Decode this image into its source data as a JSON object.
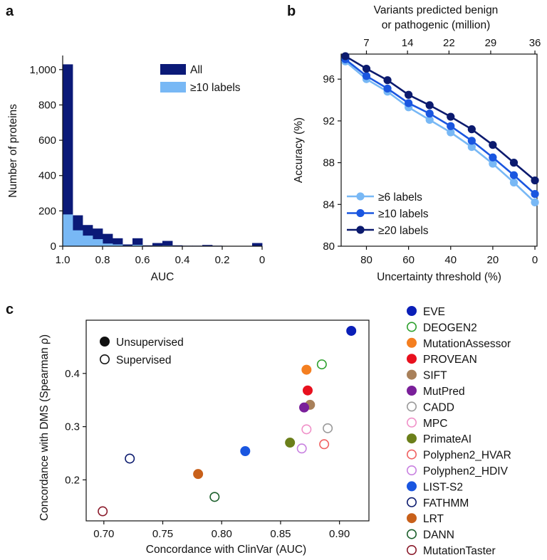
{
  "figure": {
    "panels": {
      "a": "a",
      "b": "b",
      "c": "c"
    }
  },
  "chart_data": [
    {
      "id": "a",
      "type": "bar",
      "title": "",
      "xlabel": "AUC",
      "ylabel": "Number of proteins",
      "xlim": [
        1.0,
        0.0
      ],
      "ylim": [
        0,
        1080
      ],
      "xticks": [
        1.0,
        0.8,
        0.6,
        0.4,
        0.2,
        0
      ],
      "xtick_labels": [
        "1.0",
        "0.8",
        "0.6",
        "0.4",
        "0.2",
        "0"
      ],
      "yticks": [
        0,
        200,
        400,
        600,
        800,
        1000
      ],
      "ytick_labels": [
        "0",
        "200",
        "400",
        "600",
        "800",
        "1,000"
      ],
      "bin_width": 0.05,
      "bin_starts": [
        1.0,
        0.95,
        0.9,
        0.85,
        0.8,
        0.75,
        0.7,
        0.65,
        0.6,
        0.55,
        0.5,
        0.45,
        0.4,
        0.35,
        0.3,
        0.25,
        0.2,
        0.15,
        0.1,
        0.05
      ],
      "series": [
        {
          "name": "All",
          "color": "#0b1a78",
          "values": [
            1030,
            175,
            120,
            100,
            70,
            45,
            10,
            45,
            5,
            18,
            30,
            5,
            3,
            3,
            7,
            3,
            2,
            2,
            2,
            18
          ]
        },
        {
          "name": "≥10 labels",
          "color": "#78b8f5",
          "values": [
            180,
            90,
            60,
            40,
            15,
            10,
            3,
            8,
            2,
            3,
            4,
            1,
            1,
            1,
            1,
            0,
            0,
            0,
            0,
            0
          ]
        }
      ],
      "legend": [
        "All",
        "≥10 labels"
      ]
    },
    {
      "id": "b",
      "type": "line",
      "xlabel": "Uncertainty threshold (%)",
      "ylabel": "Accuracy (%)",
      "top_xlabel": [
        "Variants predicted benign",
        "or pathogenic (million)"
      ],
      "xlim": [
        92,
        -1
      ],
      "ylim": [
        80,
        98.4
      ],
      "xticks": [
        80,
        60,
        40,
        20,
        0
      ],
      "xtick_labels": [
        "80",
        "60",
        "40",
        "20",
        "0"
      ],
      "yticks": [
        80,
        84,
        88,
        92,
        96
      ],
      "ytick_labels": [
        "80",
        "84",
        "88",
        "92",
        "96"
      ],
      "top_ticks": [
        {
          "label": "7",
          "x": 80
        },
        {
          "label": "14",
          "x": 60.5
        },
        {
          "label": "22",
          "x": 40.8
        },
        {
          "label": "29",
          "x": 21
        },
        {
          "label": "36",
          "x": 0
        }
      ],
      "x": [
        90,
        80,
        70,
        60,
        50,
        40,
        30,
        20,
        10,
        0
      ],
      "series": [
        {
          "name": "≥6 labels",
          "color": "#78b8f5",
          "values": [
            97.7,
            96.0,
            94.8,
            93.3,
            92.1,
            90.9,
            89.5,
            87.9,
            86.1,
            84.2
          ]
        },
        {
          "name": "≥10 labels",
          "color": "#1a56e0",
          "values": [
            97.9,
            96.3,
            95.1,
            93.7,
            92.7,
            91.5,
            90.1,
            88.5,
            86.8,
            85.0
          ]
        },
        {
          "name": "≥20 labels",
          "color": "#0b1a6e",
          "values": [
            98.2,
            97.0,
            95.9,
            94.5,
            93.5,
            92.4,
            91.2,
            89.7,
            88.0,
            86.3
          ]
        }
      ],
      "legend": [
        "≥6 labels",
        "≥10 labels",
        "≥20 labels"
      ]
    },
    {
      "id": "c",
      "type": "scatter",
      "xlabel": "Concordance with ClinVar (AUC)",
      "ylabel": "Concordance with DMS (Spearman ρ)",
      "xlim": [
        0.685,
        0.925
      ],
      "ylim": [
        0.123,
        0.5
      ],
      "xticks": [
        0.7,
        0.75,
        0.8,
        0.85,
        0.9
      ],
      "xtick_labels": [
        "0.70",
        "0.75",
        "0.80",
        "0.85",
        "0.90"
      ],
      "yticks": [
        0.2,
        0.3,
        0.4
      ],
      "ytick_labels": [
        "0.2",
        "0.3",
        "0.4"
      ],
      "type_legend": [
        {
          "label": "Unsupervised",
          "filled": true
        },
        {
          "label": "Supervised",
          "filled": false
        }
      ],
      "points": [
        {
          "name": "EVE",
          "x": 0.91,
          "y": 0.48,
          "filled": true,
          "color": "#0a1fb8"
        },
        {
          "name": "DEOGEN2",
          "x": 0.885,
          "y": 0.417,
          "filled": false,
          "color": "#2ca02c"
        },
        {
          "name": "MutationAssessor",
          "x": 0.872,
          "y": 0.407,
          "filled": true,
          "color": "#f47f20"
        },
        {
          "name": "PROVEAN",
          "x": 0.873,
          "y": 0.368,
          "filled": true,
          "color": "#e8101e"
        },
        {
          "name": "SIFT",
          "x": 0.875,
          "y": 0.341,
          "filled": true,
          "color": "#a8805a"
        },
        {
          "name": "MutPred",
          "x": 0.87,
          "y": 0.336,
          "filled": true,
          "color": "#7a1f9a"
        },
        {
          "name": "CADD",
          "x": 0.89,
          "y": 0.297,
          "filled": false,
          "color": "#999999"
        },
        {
          "name": "MPC",
          "x": 0.872,
          "y": 0.295,
          "filled": false,
          "color": "#f090c8"
        },
        {
          "name": "PrimateAI",
          "x": 0.858,
          "y": 0.27,
          "filled": true,
          "color": "#6b7f1a"
        },
        {
          "name": "Polyphen2_HVAR",
          "x": 0.887,
          "y": 0.267,
          "filled": false,
          "color": "#f06060"
        },
        {
          "name": "Polyphen2_HDIV",
          "x": 0.868,
          "y": 0.259,
          "filled": false,
          "color": "#c880e0"
        },
        {
          "name": "LIST-S2",
          "x": 0.82,
          "y": 0.254,
          "filled": true,
          "color": "#1a56e0"
        },
        {
          "name": "FATHMM",
          "x": 0.722,
          "y": 0.24,
          "filled": false,
          "color": "#0b1a6e"
        },
        {
          "name": "LRT",
          "x": 0.78,
          "y": 0.211,
          "filled": true,
          "color": "#c8601a"
        },
        {
          "name": "DANN",
          "x": 0.794,
          "y": 0.168,
          "filled": false,
          "color": "#1a5e2a"
        },
        {
          "name": "MutationTaster",
          "x": 0.699,
          "y": 0.141,
          "filled": false,
          "color": "#8a1a2a"
        }
      ]
    }
  ]
}
